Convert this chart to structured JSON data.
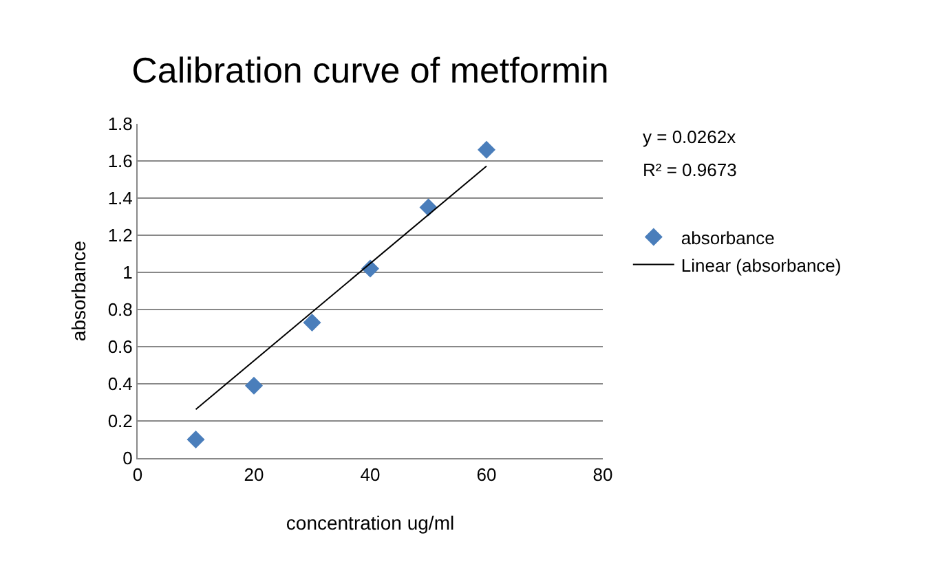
{
  "chart_data": {
    "type": "scatter",
    "title": "Calibration curve of metformin",
    "xlabel": "concentration ug/ml",
    "ylabel": "absorbance",
    "x": [
      10,
      20,
      30,
      40,
      50,
      60
    ],
    "series": [
      {
        "name": "absorbance",
        "color": "#4a7ebb",
        "values": [
          0.1,
          0.39,
          0.73,
          1.02,
          1.35,
          1.66
        ],
        "marker": "diamond"
      },
      {
        "name": "Linear (absorbance)",
        "type": "line",
        "color": "#000000",
        "x": [
          10,
          60
        ],
        "values": [
          0.262,
          1.572
        ],
        "marker": "none",
        "line_style": "solid"
      }
    ],
    "xlim": [
      0,
      80
    ],
    "xticks": [
      0,
      20,
      40,
      60,
      80
    ],
    "ylim": [
      0,
      1.8
    ],
    "yticks": [
      0,
      0.2,
      0.4,
      0.6,
      0.8,
      1,
      1.2,
      1.4,
      1.6,
      1.8
    ],
    "grid": "y",
    "legend": "right",
    "annotations": [
      "y = 0.0262x",
      "R² = 0.9673"
    ]
  }
}
